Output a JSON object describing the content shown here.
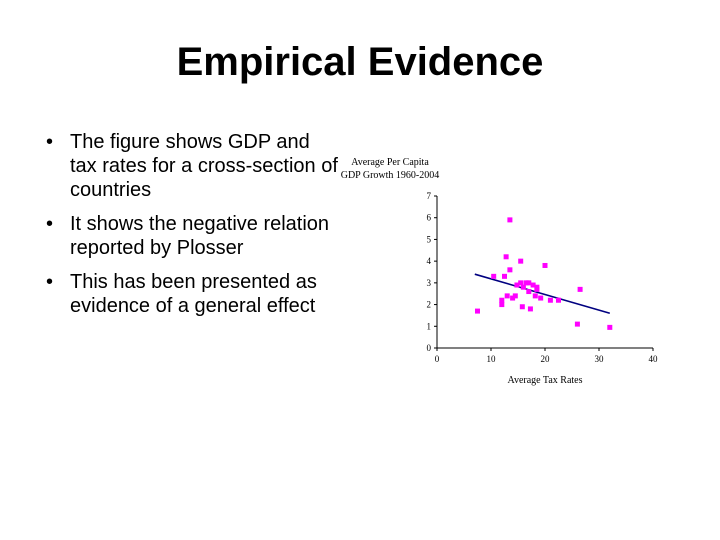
{
  "slide": {
    "title": "Empirical Evidence",
    "bullets": [
      "The figure shows GDP and tax rates for a cross-section of countries",
      "It shows the negative relation reported by Plosser",
      "This has been presented as evidence of a general effect"
    ]
  },
  "chart_data": {
    "type": "scatter",
    "title": "",
    "ylabel": "Average Per Capita GDP Growth 1960-2004",
    "xlabel": "Average Tax Rates",
    "xlim": [
      0,
      40
    ],
    "ylim": [
      0,
      7
    ],
    "xticks": [
      0,
      10,
      20,
      30,
      40
    ],
    "yticks": [
      0,
      1,
      2,
      3,
      4,
      5,
      6,
      7
    ],
    "grid": false,
    "marker_color": "#ff00ff",
    "line_color": "#000080",
    "points": [
      [
        7.5,
        1.7
      ],
      [
        10.5,
        3.3
      ],
      [
        12,
        2.2
      ],
      [
        12,
        2.0
      ],
      [
        12.5,
        3.3
      ],
      [
        12.8,
        4.2
      ],
      [
        13,
        2.4
      ],
      [
        13.5,
        3.6
      ],
      [
        13.5,
        5.9
      ],
      [
        14,
        2.3
      ],
      [
        14.5,
        2.4
      ],
      [
        14.8,
        2.9
      ],
      [
        15.5,
        4.0
      ],
      [
        15.5,
        3.0
      ],
      [
        15.8,
        1.9
      ],
      [
        16,
        2.8
      ],
      [
        16.5,
        3.0
      ],
      [
        17,
        3.0
      ],
      [
        17,
        2.6
      ],
      [
        17.3,
        1.8
      ],
      [
        17.8,
        2.9
      ],
      [
        18.2,
        2.4
      ],
      [
        18.5,
        2.7
      ],
      [
        18.5,
        2.8
      ],
      [
        19.2,
        2.3
      ],
      [
        20,
        3.8
      ],
      [
        21,
        2.2
      ],
      [
        22.5,
        2.2
      ],
      [
        26,
        1.1
      ],
      [
        26.5,
        2.7
      ],
      [
        32,
        0.95
      ]
    ],
    "trendline": {
      "x": [
        7,
        32
      ],
      "y": [
        3.4,
        1.6
      ]
    }
  }
}
